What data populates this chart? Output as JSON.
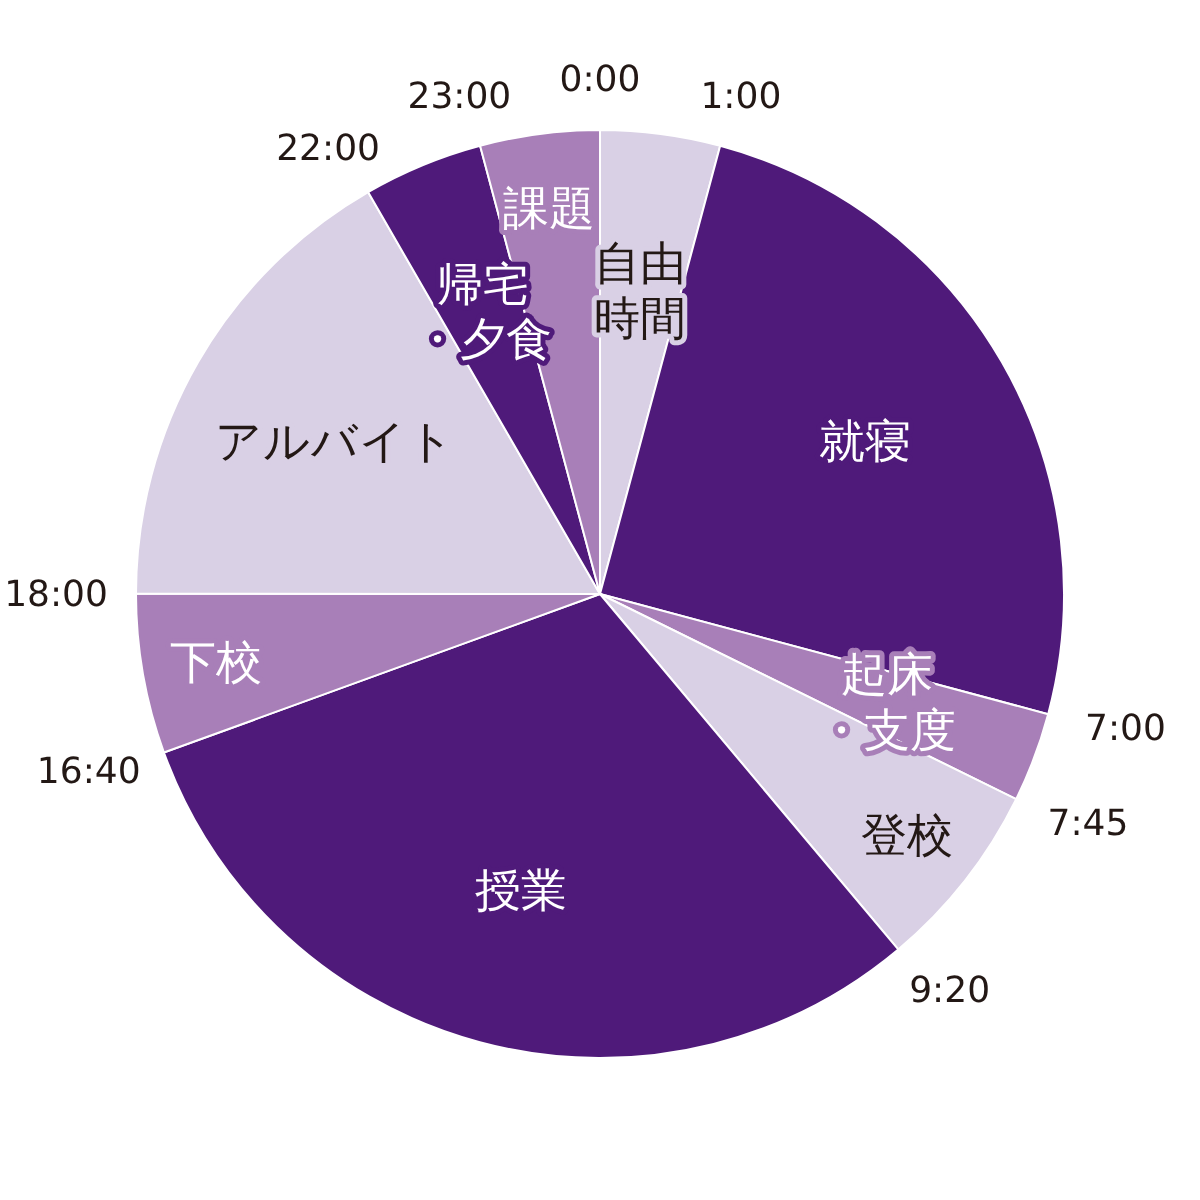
{
  "chart_data": {
    "type": "pie",
    "categories": [
      "自由時間",
      "就寝",
      "起床・支度",
      "登校",
      "授業",
      "下校",
      "アルバイト",
      "帰宅・夕食",
      "課題"
    ],
    "values": [
      4.17,
      25,
      3.12,
      6.6,
      30.56,
      5.56,
      16.66,
      4.17,
      4.16
    ],
    "colors": [
      "#d9d0e5",
      "#4f1a7a",
      "#a87fb8",
      "#d9d0e5",
      "#4f1a7a",
      "#a87fb8",
      "#d9d0e5",
      "#4f1a7a",
      "#a87fb8"
    ],
    "annotations": [
      "0:00",
      "1:00",
      "7:00",
      "7:45",
      "9:20",
      "16:40",
      "18:00",
      "22:00",
      "23:00"
    ]
  }
}
